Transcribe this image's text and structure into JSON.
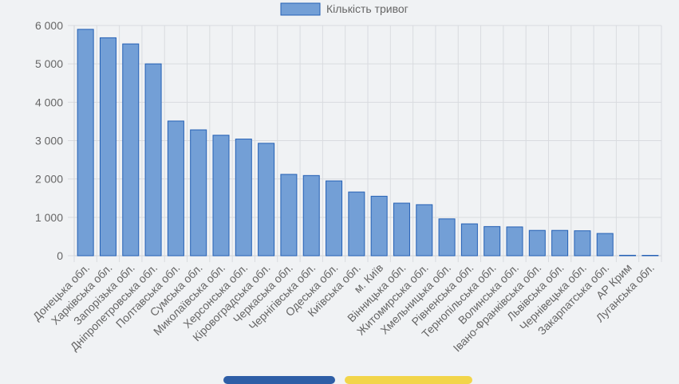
{
  "chart_data": {
    "type": "bar",
    "legend": {
      "label": "Кількість тривог",
      "placement": "top-center"
    },
    "categories": [
      "Донецька обл.",
      "Харківська обл.",
      "Запорізька обл.",
      "Дніпропетровська обл.",
      "Полтавська обл.",
      "Сумська обл.",
      "Миколаївська обл.",
      "Херсонська обл.",
      "Кіровоградська обл.",
      "Черкаська обл.",
      "Чернігівська обл.",
      "Одеська обл.",
      "Київська обл.",
      "м. Київ",
      "Вінницька обл.",
      "Житомирська обл.",
      "Хмельницька обл.",
      "Рівненська обл.",
      "Тернопільська обл.",
      "Волинська обл.",
      "Івано-Франківська обл.",
      "Львівська обл.",
      "Чернівецька обл.",
      "Закарпатська обл.",
      "АР Крим",
      "Луганська обл."
    ],
    "values": [
      5900,
      5680,
      5520,
      5000,
      3510,
      3280,
      3140,
      3040,
      2930,
      2120,
      2090,
      1950,
      1660,
      1550,
      1370,
      1330,
      960,
      830,
      760,
      750,
      660,
      660,
      650,
      580,
      12,
      8
    ],
    "ylim": [
      0,
      6000
    ],
    "yticks": [
      0,
      1000,
      2000,
      3000,
      4000,
      5000,
      6000
    ],
    "ytick_labels": [
      "0",
      "1 000",
      "2 000",
      "3 000",
      "4 000",
      "5 000",
      "6 000"
    ],
    "grid": true,
    "colors": {
      "bar_fill": "#739fd6",
      "bar_stroke": "#2460b5",
      "grid": "#d9dbdf",
      "axis": "#cfd2d6",
      "text": "#666666",
      "background": "#f0f2f4",
      "strip_blue": "#2e5ea6",
      "strip_yellow": "#f2d54a"
    }
  }
}
